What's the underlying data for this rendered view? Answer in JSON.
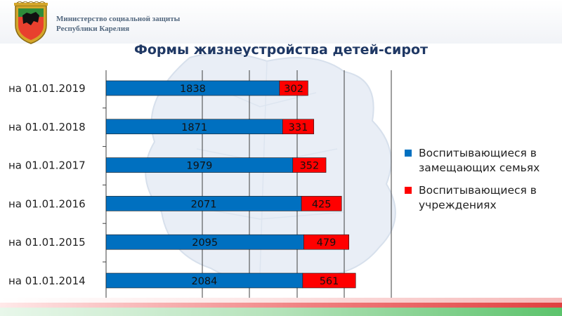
{
  "header": {
    "ministry_line1": "Министерство социальной защиты",
    "ministry_line2": "Республики Карелия"
  },
  "colors": {
    "series_family": "#0070c0",
    "series_institution": "#ff0000",
    "title": "#1f3864"
  },
  "chart_data": {
    "type": "bar",
    "orientation": "horizontal",
    "stacked": true,
    "title": "Формы жизнеустройства детей-сирот",
    "categories": [
      "на 01.01.2019",
      "на 01.01.2018",
      "на 01.01.2017",
      "на 01.01.2016",
      "на 01.01.2015",
      "на 01.01.2014"
    ],
    "series": [
      {
        "name": "Воспитывающиеся в замещающих семьях",
        "color": "#0070c0",
        "values": [
          1838,
          1871,
          1979,
          2071,
          2095,
          2084
        ]
      },
      {
        "name": "Воспитывающиеся в учреждениях",
        "color": "#ff0000",
        "values": [
          302,
          331,
          352,
          425,
          479,
          561
        ]
      }
    ],
    "xlim": [
      0,
      3000
    ],
    "grid": true,
    "legend_position": "right",
    "data_labels": true
  }
}
